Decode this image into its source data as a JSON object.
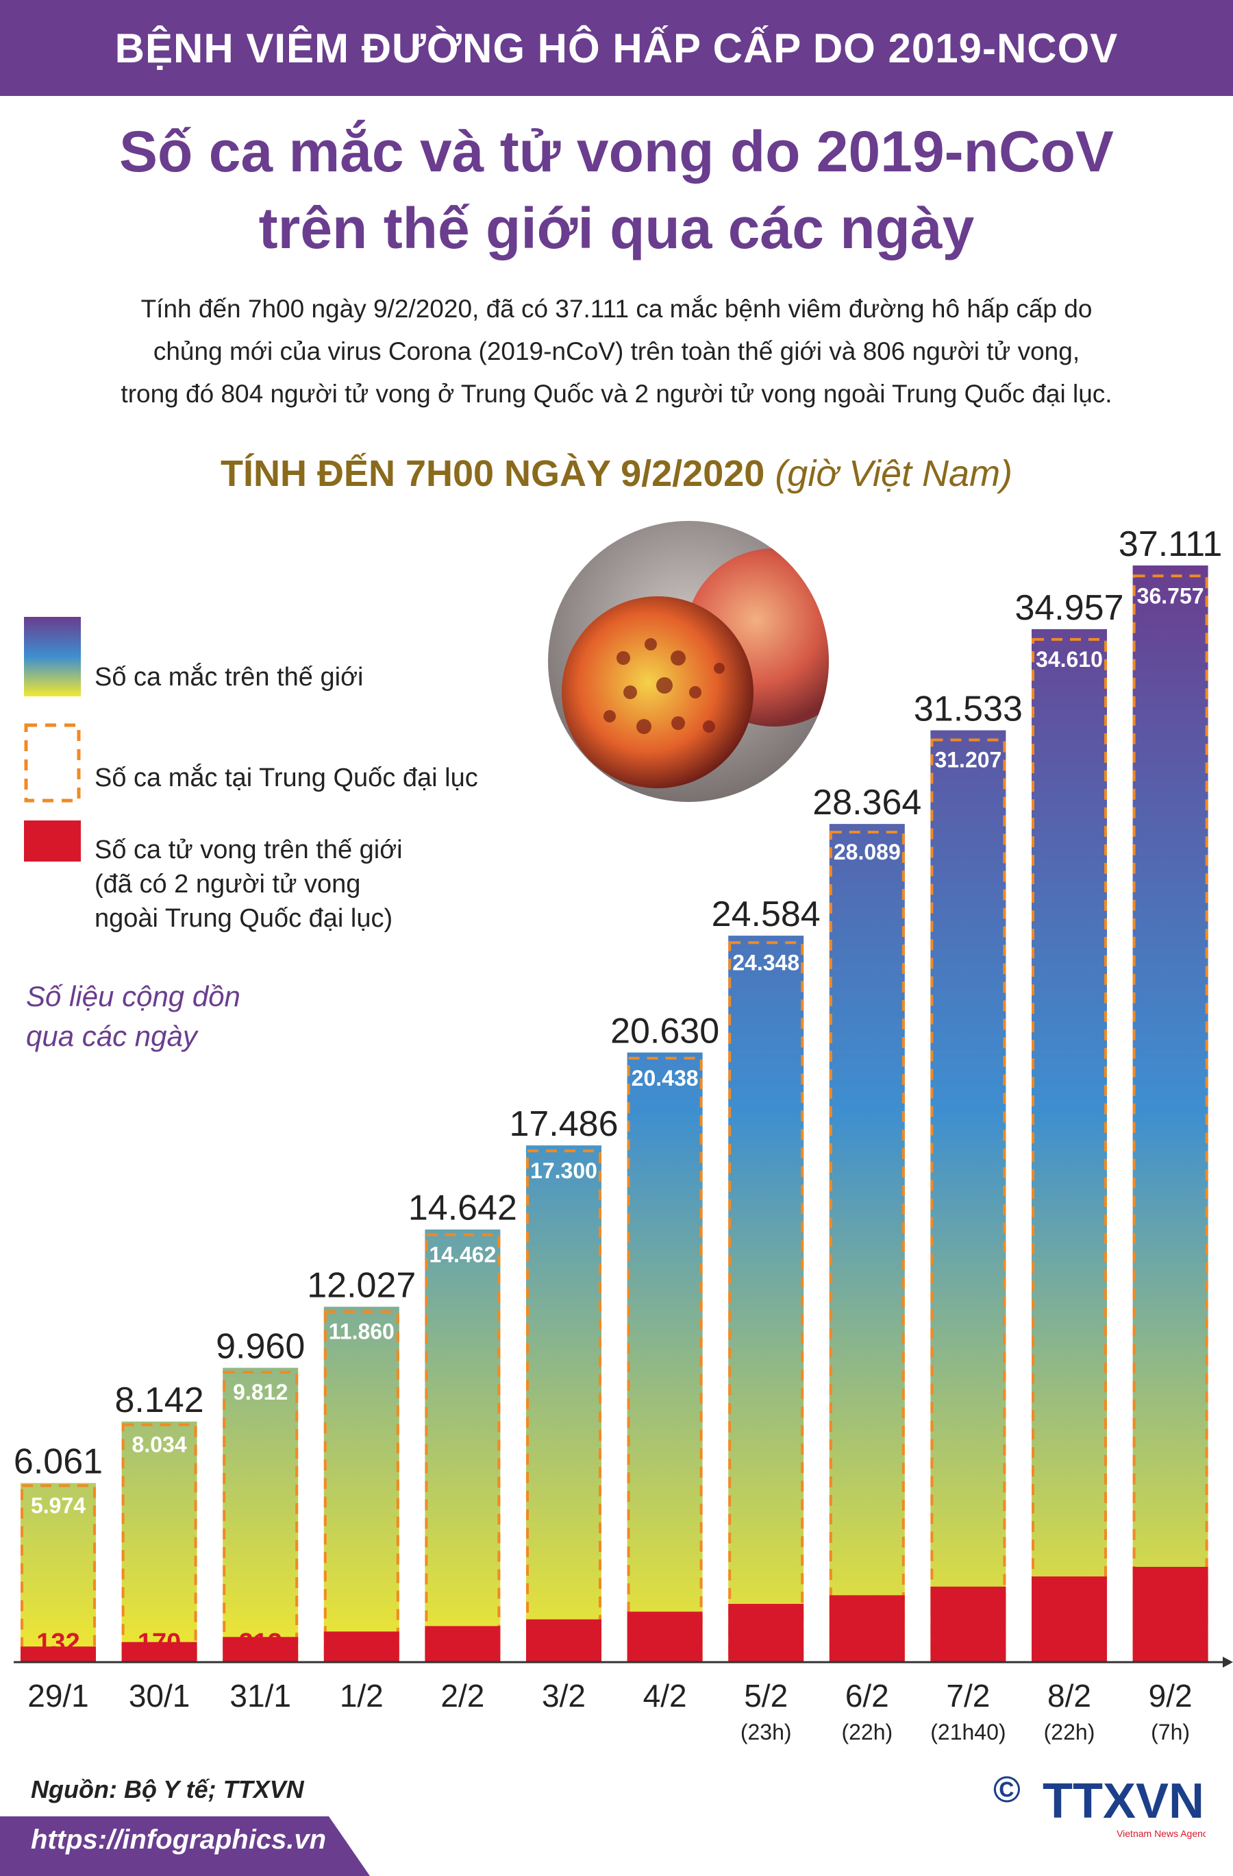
{
  "header": {
    "banner": "BỆNH VIÊM ĐƯỜNG HÔ HẤP CẤP DO 2019-NCOV",
    "title_line1": "Số ca mắc và tử vong do 2019-nCoV",
    "title_line2": "trên thế giới qua các ngày"
  },
  "description": {
    "line1": "Tính đến 7h00 ngày 9/2/2020, đã có 37.111 ca mắc bệnh viêm đường hô hấp cấp do",
    "line2": "chủng mới của virus Corona (2019-nCoV) trên toàn thế giới và 806 người tử vong,",
    "line3": "trong đó 804 người tử vong ở Trung Quốc và 2 người tử vong ngoài Trung Quốc đại lục."
  },
  "subhead": {
    "bold": "TÍNH ĐẾN 7H00 NGÀY 9/2/2020",
    "italic": "(giờ Việt Nam)"
  },
  "legend": {
    "world_cases": "Số ca mắc trên thế giới",
    "china_cases": "Số ca mắc tại Trung Quốc đại lục",
    "deaths_line1": "Số ca tử vong trên thế giới",
    "deaths_line2": "(đã có 2 người tử vong",
    "deaths_line3": "ngoài Trung Quốc đại lục)"
  },
  "note": {
    "line1": "Số liệu cộng dồn",
    "line2": "qua các ngày"
  },
  "chart_data": {
    "type": "bar",
    "categories": [
      "29/1",
      "30/1",
      "31/1",
      "1/2",
      "2/2",
      "3/2",
      "4/2",
      "5/2",
      "6/2",
      "7/2",
      "8/2",
      "9/2"
    ],
    "sublabels": [
      "",
      "",
      "",
      "",
      "",
      "",
      "",
      "(23h)",
      "(22h)",
      "(21h40)",
      "(22h)",
      "(7h)"
    ],
    "series": [
      {
        "name": "Số ca mắc trên thế giới",
        "values": [
          6061,
          8142,
          9960,
          12027,
          14642,
          17486,
          20630,
          24584,
          28364,
          31533,
          34957,
          37111
        ]
      },
      {
        "name": "Số ca mắc tại Trung Quốc đại lục",
        "values": [
          5974,
          8034,
          9812,
          11860,
          14462,
          17300,
          20438,
          24348,
          28089,
          31207,
          34610,
          36757
        ]
      },
      {
        "name": "Số ca tử vong trên thế giới",
        "values": [
          132,
          170,
          213,
          259,
          305,
          362,
          427,
          493,
          566,
          639,
          725,
          806
        ]
      }
    ],
    "colors": {
      "gradient_top": "#6a3d8e",
      "gradient_mid": "#3e8fd0",
      "gradient_bottom": "#f2e830",
      "china_dash": "#f08a24",
      "deaths": "#d7182a",
      "deaths_label": "#d7182a"
    }
  },
  "footer": {
    "source": "Nguồn: Bộ Y tế; TTXVN",
    "url": "https://infographics.vn",
    "copyright": "©",
    "logo_text": "TTXVN",
    "logo_sub": "Vietnam News Agency"
  }
}
